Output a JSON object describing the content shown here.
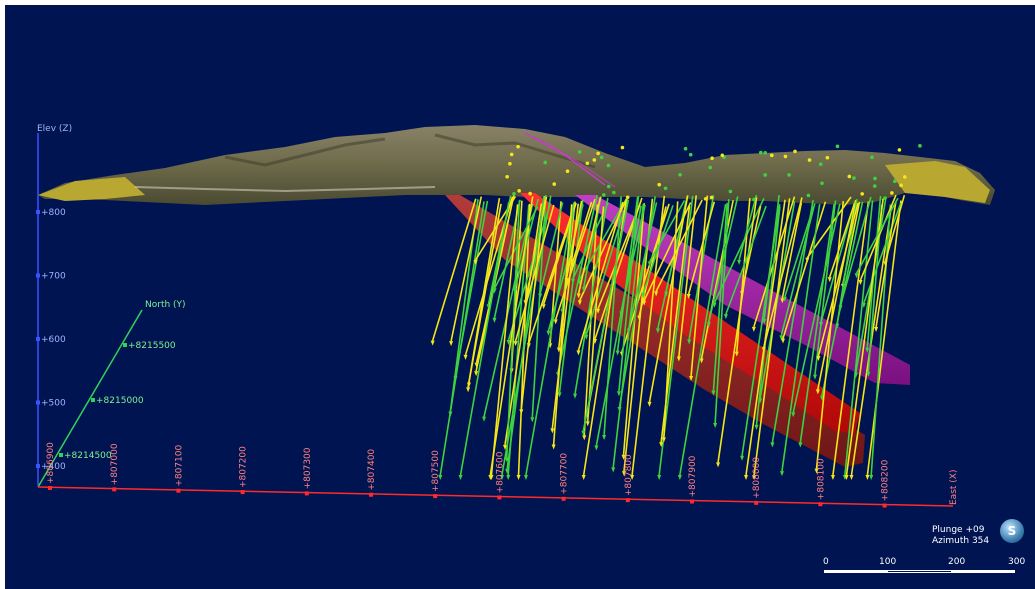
{
  "axes": {
    "elev_label": "Elev (Z)",
    "north_label": "North (Y)",
    "east_label": "East (X)",
    "elev_ticks": [
      "+800",
      "+700",
      "+600",
      "+500",
      "+400"
    ],
    "north_ticks": [
      "+8215500",
      "+8215000",
      "+8214500"
    ],
    "east_ticks": [
      "+806900",
      "+807000",
      "+807100",
      "+807200",
      "+807300",
      "+807400",
      "+807500",
      "+807600",
      "+807700",
      "+807800",
      "+807900",
      "+808000",
      "+808100",
      "+808200"
    ]
  },
  "view": {
    "plunge": "Plunge +09",
    "azimuth": "Azimuth 354",
    "compass_letter": "S"
  },
  "scale": {
    "ticks": [
      "0",
      "100",
      "200",
      "300"
    ]
  },
  "colors": {
    "background": "#001452",
    "elev_axis": "#3a52ff",
    "north_axis": "#2fd35a",
    "east_axis": "#ff2a2a",
    "orebody_red": "#d01010",
    "orebody_dark": "#8e2020",
    "orebody_magenta": "#a81aa8",
    "drillhole_yellow": "#f5e617",
    "drillhole_green": "#3fd23f"
  }
}
